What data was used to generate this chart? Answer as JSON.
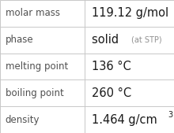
{
  "rows": [
    {
      "label": "molar mass",
      "value": "119.12 g/mol",
      "type": "plain"
    },
    {
      "label": "phase",
      "value": "solid",
      "value_suffix": "(at STP)",
      "type": "phase"
    },
    {
      "label": "melting point",
      "value": "136 °C",
      "type": "plain"
    },
    {
      "label": "boiling point",
      "value": "260 °C",
      "type": "plain"
    },
    {
      "label": "density",
      "value": "1.464 g/cm",
      "superscript": "3",
      "type": "super"
    }
  ],
  "col_split": 0.485,
  "background_color": "#ffffff",
  "grid_color": "#c8c8c8",
  "label_color": "#505050",
  "value_color": "#1a1a1a",
  "suffix_color": "#909090",
  "label_fontsize": 8.5,
  "value_fontsize": 10.5,
  "suffix_fontsize": 7.0,
  "super_fontsize": 7.0,
  "figwidth": 2.2,
  "figheight": 1.69,
  "dpi": 100
}
